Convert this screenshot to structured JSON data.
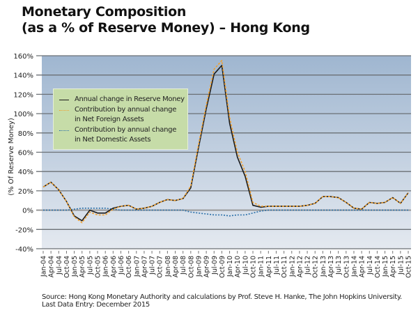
{
  "title_line1": "Monetary Composition",
  "title_line2": "(as a % of Reserve Money) – Hong Kong",
  "source_line1": "Source: Hong Kong Monetary Authority and calculations by Prof. Steve H. Hanke, The John Hopkins University.",
  "source_line2": "Last Data Entry: December 2015",
  "chart_data": {
    "type": "line",
    "title": "Monetary Composition (as a % of Reserve Money) – Hong Kong",
    "xlabel": "",
    "ylabel": "(% Of Reserve Money)",
    "ylim": [
      -40,
      160
    ],
    "yticks": [
      -40,
      -20,
      0,
      20,
      40,
      60,
      80,
      100,
      120,
      140,
      160
    ],
    "ytick_labels": [
      "-40%",
      "-20%",
      "0%",
      "20%",
      "40%",
      "60%",
      "80%",
      "100%",
      "120%",
      "140%",
      "160%"
    ],
    "grid": true,
    "legend_position": "upper-left",
    "x": [
      "Jan-04",
      "Apr-04",
      "Jul-04",
      "Oct-04",
      "Jan-05",
      "Apr-05",
      "Jul-05",
      "Oct-05",
      "Jan-06",
      "Apr-06",
      "Jul-06",
      "Oct-06",
      "Jan-07",
      "Apr-07",
      "Jul-07",
      "Oct-07",
      "Jan-08",
      "Apr-08",
      "Jul-08",
      "Oct-08",
      "Jan-09",
      "Apr-09",
      "Jul-09",
      "Oct-09",
      "Jan-10",
      "Apr-10",
      "Jul-10",
      "Oct-10",
      "Jan-11",
      "Apr-11",
      "Jul-11",
      "Oct-11",
      "Jan-12",
      "Apr-12",
      "Jul-12",
      "Oct-12",
      "Jan-13",
      "Apr-13",
      "Jul-13",
      "Oct-13",
      "Jan-14",
      "Apr-14",
      "Jul-14",
      "Oct-14",
      "Jan-15",
      "Apr-15",
      "Jul-15",
      "Oct-15"
    ],
    "series": [
      {
        "name": "Annual change in Reserve Money",
        "color": "#1a1a1a",
        "style": "solid",
        "values": [
          24,
          29,
          21,
          9,
          -6,
          -11,
          0,
          -3,
          -3,
          2,
          4,
          5,
          1,
          2,
          4,
          8,
          11,
          10,
          12,
          23,
          65,
          105,
          141,
          150,
          90,
          55,
          35,
          5,
          3,
          4,
          4,
          4,
          4,
          4,
          5,
          7,
          14,
          14,
          13,
          8,
          2,
          1,
          8,
          7,
          8,
          13,
          7,
          18
        ]
      },
      {
        "name": "Contribution by annual change in Net Foreign Assets",
        "color": "#f0a030",
        "style": "dashed",
        "values": [
          24,
          29,
          21,
          9,
          -7,
          -13,
          -2,
          -5,
          -5,
          1,
          4,
          5,
          1,
          2,
          4,
          8,
          11,
          10,
          12,
          25,
          68,
          109,
          146,
          155,
          96,
          60,
          40,
          8,
          4,
          4,
          4,
          4,
          4,
          4,
          5,
          7,
          14,
          14,
          13,
          8,
          2,
          1,
          8,
          7,
          8,
          13,
          7,
          18
        ]
      },
      {
        "name": "Contribution by annual change in Net Domestic Assets",
        "color": "#2a6fa8",
        "style": "dotted",
        "values": [
          0,
          0,
          0,
          0,
          1,
          2,
          2,
          2,
          2,
          1,
          0,
          0,
          0,
          0,
          0,
          0,
          0,
          0,
          0,
          -2,
          -3,
          -4,
          -5,
          -5,
          -6,
          -5,
          -5,
          -3,
          -1,
          0,
          0,
          0,
          0,
          0,
          0,
          0,
          0,
          0,
          0,
          0,
          0,
          0,
          0,
          0,
          0,
          0,
          0,
          0
        ]
      }
    ]
  }
}
